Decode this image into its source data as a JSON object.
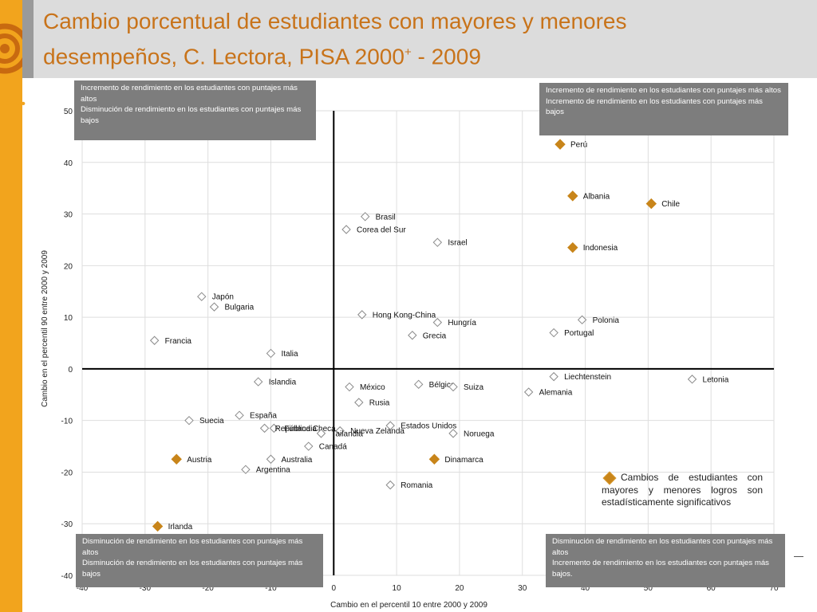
{
  "title": "Cambio porcentual de estudiantes con mayores y menores desempeños, C. Lectora, PISA 2000",
  "title_superscript": "+",
  "title_suffix": " - 2009",
  "colors": {
    "accent": "#f2a41d",
    "title": "#c8731a",
    "significant": "#c8851a",
    "box": "#7d7d7d",
    "header": "#dcdcdc"
  },
  "quadrant_boxes": {
    "top_left": [
      "Incremento de rendimiento en los estudiantes con puntajes más altos",
      "Disminución de rendimiento en los estudiantes con puntajes más bajos"
    ],
    "top_right": [
      "Incremento de rendimiento en los estudiantes con puntajes más altos",
      "Incremento de rendimiento en los estudiantes con puntajes más bajos"
    ],
    "bottom_left": [
      "Disminución de rendimiento en los estudiantes con puntajes más altos",
      "Disminución  de rendimiento en los estudiantes con puntajes más bajos"
    ],
    "bottom_right": [
      "Disminución de rendimiento en los estudiantes con puntajes  más altos",
      "Incremento de rendimiento en los estudiantes con puntajes más bajos."
    ]
  },
  "legend_text": "Cambios de estudiantes con mayores y menores logros son estadísticamente significativos",
  "chart_data": {
    "type": "scatter",
    "xlabel": "Cambio en el  percentil 10 entre 2000 y 2009",
    "ylabel": "Cambio en el percentil 90 entre 2000 y 2009",
    "xlim": [
      -40,
      70
    ],
    "ylim": [
      -40,
      50
    ],
    "x_ticks": [
      -40,
      -30,
      -20,
      -10,
      0,
      10,
      20,
      30,
      40,
      50,
      60,
      70
    ],
    "y_ticks": [
      -40,
      -30,
      -20,
      -10,
      0,
      10,
      20,
      30,
      40,
      50
    ],
    "grid": true,
    "points": [
      {
        "label": "Perú",
        "x": 36,
        "y": 43.5,
        "significant": true
      },
      {
        "label": "Albania",
        "x": 38,
        "y": 33.5,
        "significant": true
      },
      {
        "label": "Chile",
        "x": 50.5,
        "y": 32,
        "significant": true
      },
      {
        "label": "Indonesia",
        "x": 38,
        "y": 23.5,
        "significant": true
      },
      {
        "label": "Brasil",
        "x": 5,
        "y": 29.5,
        "significant": false
      },
      {
        "label": "Corea del Sur",
        "x": 2,
        "y": 27,
        "significant": false
      },
      {
        "label": "Israel",
        "x": 16.5,
        "y": 24.5,
        "significant": false
      },
      {
        "label": "Japón",
        "x": -21,
        "y": 14,
        "significant": false
      },
      {
        "label": "Bulgaria",
        "x": -19,
        "y": 12,
        "significant": false
      },
      {
        "label": "Hong Kong-China",
        "x": 4.5,
        "y": 10.5,
        "significant": false
      },
      {
        "label": "Polonia",
        "x": 39.5,
        "y": 9.5,
        "significant": false
      },
      {
        "label": "Hungría",
        "x": 16.5,
        "y": 9,
        "significant": false
      },
      {
        "label": "Portugal",
        "x": 35,
        "y": 7,
        "significant": false
      },
      {
        "label": "Grecia",
        "x": 12.5,
        "y": 6.5,
        "significant": false
      },
      {
        "label": "Francia",
        "x": -28.5,
        "y": 5.5,
        "significant": false
      },
      {
        "label": "Italia",
        "x": -10,
        "y": 3,
        "significant": false
      },
      {
        "label": "Liechtenstein",
        "x": 35,
        "y": -1.5,
        "significant": false
      },
      {
        "label": "Letonia",
        "x": 57,
        "y": -2,
        "significant": false
      },
      {
        "label": "Islandia",
        "x": -12,
        "y": -2.5,
        "significant": false
      },
      {
        "label": "Bélgica",
        "x": 13.5,
        "y": -3,
        "significant": false
      },
      {
        "label": "México",
        "x": 2.5,
        "y": -3.5,
        "significant": false
      },
      {
        "label": "Suiza",
        "x": 19,
        "y": -3.5,
        "significant": false
      },
      {
        "label": "Alemania",
        "x": 31,
        "y": -4.5,
        "significant": false
      },
      {
        "label": "Rusia",
        "x": 4,
        "y": -6.5,
        "significant": false
      },
      {
        "label": "España",
        "x": -15,
        "y": -9,
        "significant": false
      },
      {
        "label": "Suecia",
        "x": -23,
        "y": -10,
        "significant": false
      },
      {
        "label": "Estados Unidos",
        "x": 9,
        "y": -11,
        "significant": false
      },
      {
        "label": "Finlandia",
        "x": -9.5,
        "y": -11.5,
        "significant": false
      },
      {
        "label": "República Checa",
        "x": -11,
        "y": -11.5,
        "significant": false
      },
      {
        "label": "Nueva Zelanda",
        "x": 1,
        "y": -12,
        "significant": false
      },
      {
        "label": "Tailandia",
        "x": -2,
        "y": -12.5,
        "significant": false
      },
      {
        "label": "Noruega",
        "x": 19,
        "y": -12.5,
        "significant": false
      },
      {
        "label": "Canadá",
        "x": -4,
        "y": -15,
        "significant": false
      },
      {
        "label": "Austria",
        "x": -25,
        "y": -17.5,
        "significant": true
      },
      {
        "label": "Australia",
        "x": -10,
        "y": -17.5,
        "significant": false
      },
      {
        "label": "Dinamarca",
        "x": 16,
        "y": -17.5,
        "significant": true
      },
      {
        "label": "Argentina",
        "x": -14,
        "y": -19.5,
        "significant": false
      },
      {
        "label": "Romania",
        "x": 9,
        "y": -22.5,
        "significant": false
      },
      {
        "label": "Irlanda",
        "x": -28,
        "y": -30.5,
        "significant": true
      }
    ]
  }
}
